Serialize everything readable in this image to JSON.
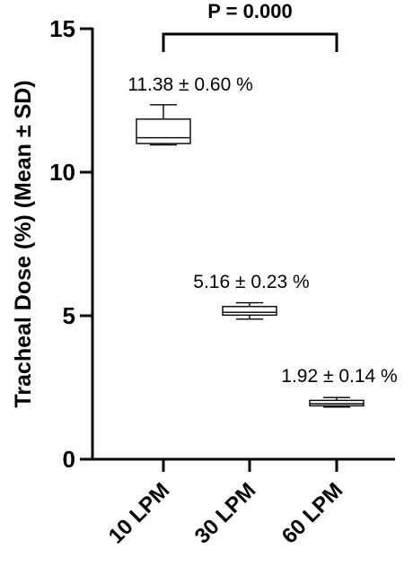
{
  "chart_data": {
    "type": "box",
    "ylabel": "Tracheal Dose (%) (Mean ± SD)",
    "ylim": [
      0,
      15
    ],
    "yticks": [
      0,
      5,
      10,
      15
    ],
    "ytick_labels": [
      "0",
      "5",
      "10",
      "15"
    ],
    "categories": [
      "10 LPM",
      "30 LPM",
      "60 LPM"
    ],
    "boxes": [
      {
        "category": "10 LPM",
        "min": 10.95,
        "q1": 11.0,
        "median": 11.2,
        "q3": 11.85,
        "max": 12.35,
        "label": "11.38 ± 0.60 %"
      },
      {
        "category": "30 LPM",
        "min": 4.88,
        "q1": 5.02,
        "median": 5.12,
        "q3": 5.32,
        "max": 5.45,
        "label": "5.16 ± 0.23 %"
      },
      {
        "category": "60 LPM",
        "min": 1.82,
        "q1": 1.86,
        "median": 1.93,
        "q3": 2.05,
        "max": 2.15,
        "label": "1.92 ± 0.14 %"
      }
    ],
    "comparison": {
      "from": "10 LPM",
      "to": "60 LPM",
      "label": "P = 0.000"
    }
  }
}
